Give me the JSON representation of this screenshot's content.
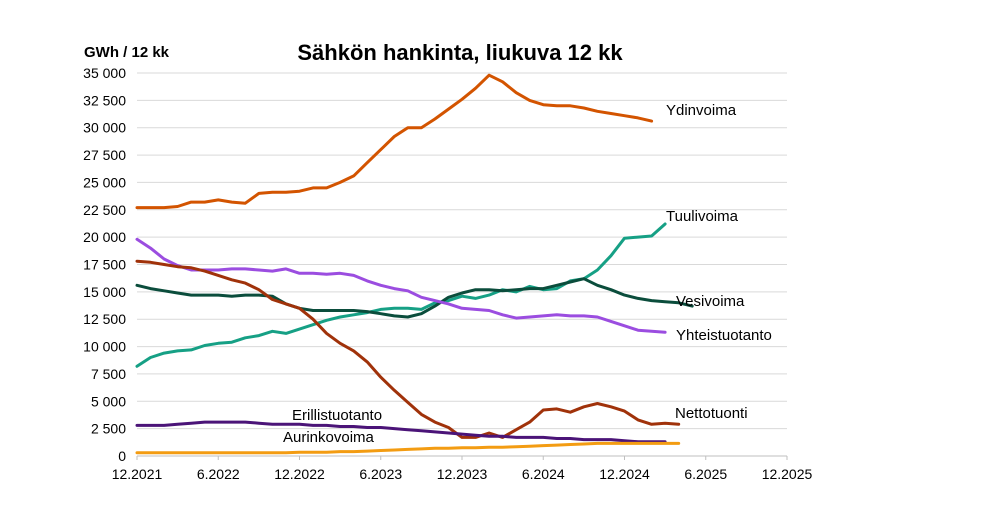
{
  "chart_data": {
    "type": "line",
    "title": "Sähkön hankinta, liukuva 12 kk",
    "ylabel": "GWh / 12 kk",
    "ylim": [
      0,
      35000
    ],
    "y_ticks": [
      "0",
      "2 500",
      "5 000",
      "7 500",
      "10 000",
      "12 500",
      "15 000",
      "17 500",
      "20 000",
      "22 500",
      "25 000",
      "27 500",
      "30 000",
      "32 500",
      "35 000"
    ],
    "x_ticks": [
      "12.2021",
      "6.2022",
      "12.2022",
      "6.2023",
      "12.2023",
      "6.2024",
      "12.2024",
      "6.2025",
      "12.2025"
    ],
    "grid": true,
    "x_start": "12.2021",
    "series": [
      {
        "name": "Ydinvoima",
        "color": "#D35400",
        "values": [
          22700,
          22700,
          22700,
          22800,
          23200,
          23200,
          23400,
          23200,
          23100,
          24000,
          24100,
          24100,
          24200,
          24500,
          24500,
          25000,
          25600,
          26800,
          28000,
          29200,
          30000,
          30000,
          30800,
          31700,
          32600,
          33600,
          34800,
          34200,
          33200,
          32500,
          32100,
          32000,
          32000,
          31800,
          31500,
          31300,
          31100,
          30900,
          30600
        ]
      },
      {
        "name": "Tuulivoima",
        "color": "#16A085",
        "values": [
          8200,
          9000,
          9400,
          9600,
          9700,
          10100,
          10300,
          10400,
          10800,
          11000,
          11400,
          11200,
          11600,
          12000,
          12400,
          12700,
          12900,
          13100,
          13400,
          13500,
          13500,
          13400,
          14000,
          14200,
          14600,
          14400,
          14700,
          15200,
          15000,
          15500,
          15200,
          15300,
          16000,
          16200,
          17000,
          18300,
          19900,
          20000,
          20100,
          21200
        ]
      },
      {
        "name": "Vesivoima",
        "color": "#0B4D3C",
        "values": [
          15600,
          15300,
          15100,
          14900,
          14700,
          14700,
          14700,
          14600,
          14700,
          14700,
          14600,
          13900,
          13500,
          13300,
          13300,
          13300,
          13300,
          13200,
          13000,
          12800,
          12700,
          13000,
          13700,
          14500,
          14900,
          15200,
          15200,
          15100,
          15200,
          15300,
          15300,
          15600,
          15900,
          16200,
          15600,
          15200,
          14700,
          14400,
          14200,
          14100,
          14000,
          13700
        ]
      },
      {
        "name": "Yhteistuotanto",
        "color": "#9B4DE0",
        "values": [
          19800,
          19000,
          18000,
          17400,
          17000,
          17000,
          17000,
          17100,
          17100,
          17000,
          16900,
          17100,
          16700,
          16700,
          16600,
          16700,
          16500,
          16000,
          15600,
          15300,
          15100,
          14500,
          14200,
          13900,
          13500,
          13400,
          13300,
          12900,
          12600,
          12700,
          12800,
          12900,
          12800,
          12800,
          12700,
          12300,
          11900,
          11500,
          11400,
          11300
        ]
      },
      {
        "name": "Nettotuonti",
        "color": "#A0320A",
        "values": [
          17800,
          17700,
          17500,
          17300,
          17200,
          16900,
          16500,
          16100,
          15800,
          15200,
          14300,
          13900,
          13500,
          12500,
          11200,
          10300,
          9600,
          8600,
          7200,
          6000,
          4900,
          3800,
          3100,
          2600,
          1700,
          1700,
          2100,
          1700,
          2400,
          3100,
          4200,
          4300,
          4000,
          4500,
          4800,
          4500,
          4100,
          3300,
          2900,
          3000,
          2900
        ]
      },
      {
        "name": "Erillistuotanto",
        "color": "#4B1478",
        "values": [
          2800,
          2800,
          2800,
          2900,
          3000,
          3100,
          3100,
          3100,
          3100,
          3000,
          2900,
          2900,
          2900,
          2800,
          2800,
          2700,
          2700,
          2600,
          2600,
          2500,
          2400,
          2300,
          2200,
          2100,
          2000,
          1900,
          1800,
          1800,
          1700,
          1700,
          1700,
          1600,
          1600,
          1500,
          1500,
          1500,
          1400,
          1300,
          1300,
          1300
        ]
      },
      {
        "name": "Aurinkovoima",
        "color": "#F39C12",
        "values": [
          300,
          300,
          300,
          300,
          300,
          300,
          300,
          300,
          300,
          300,
          300,
          300,
          350,
          350,
          350,
          400,
          400,
          450,
          500,
          550,
          600,
          650,
          700,
          700,
          750,
          750,
          800,
          800,
          850,
          900,
          950,
          1000,
          1050,
          1100,
          1150,
          1150,
          1150,
          1150,
          1150,
          1150,
          1150
        ]
      }
    ]
  }
}
